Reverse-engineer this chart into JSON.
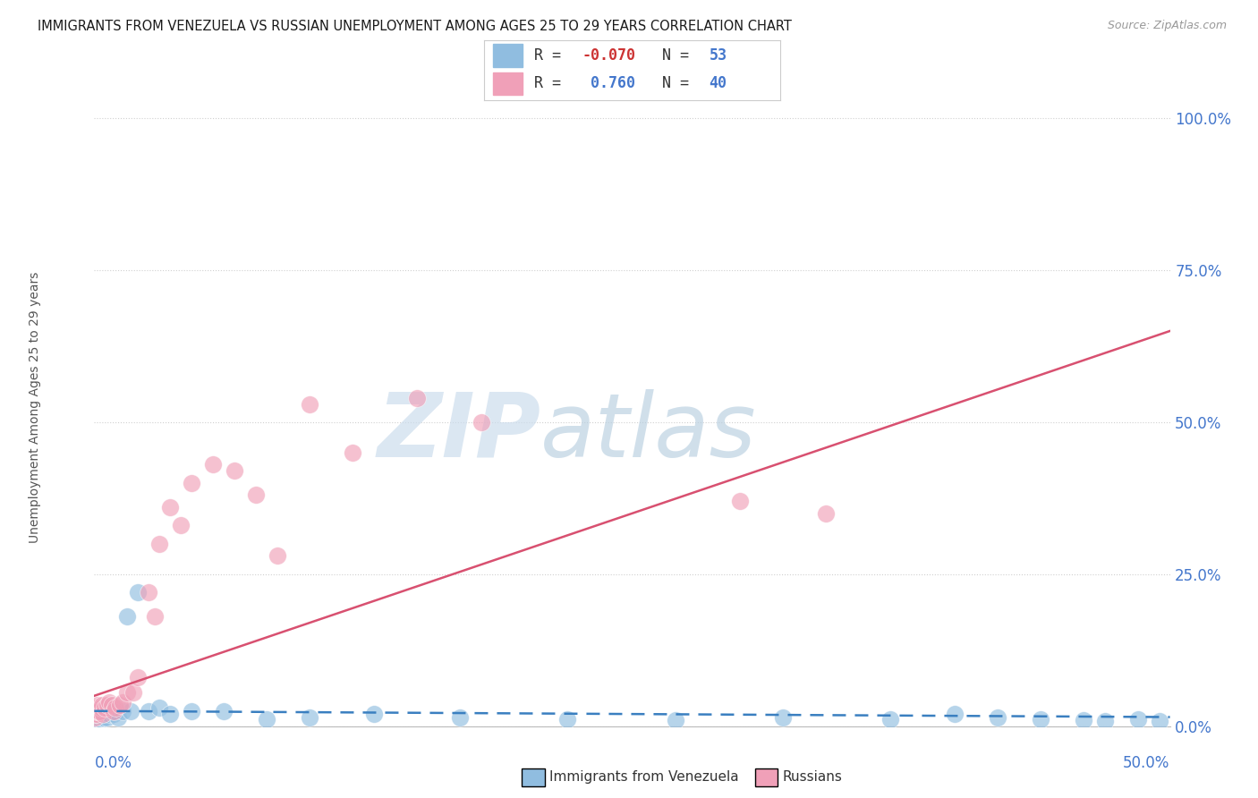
{
  "title": "IMMIGRANTS FROM VENEZUELA VS RUSSIAN UNEMPLOYMENT AMONG AGES 25 TO 29 YEARS CORRELATION CHART",
  "source": "Source: ZipAtlas.com",
  "ylabel_label": "Unemployment Among Ages 25 to 29 years",
  "blue_color": "#90bde0",
  "pink_color": "#f0a0b8",
  "blue_line_color": "#3a7fc0",
  "pink_line_color": "#d85070",
  "grid_color": "#d0d0d0",
  "background_color": "#ffffff",
  "title_color": "#1a1a1a",
  "axis_label_color": "#4477cc",
  "watermark": "ZIPatlas",
  "watermark_zip_color": "#c5d8ee",
  "watermark_atlas_color": "#b8cce0",
  "blue_scatter_x": [
    0.0002,
    0.0003,
    0.0004,
    0.0005,
    0.0006,
    0.0007,
    0.0008,
    0.0009,
    0.001,
    0.0012,
    0.0013,
    0.0014,
    0.0015,
    0.0017,
    0.002,
    0.0022,
    0.0025,
    0.003,
    0.0032,
    0.0035,
    0.004,
    0.0045,
    0.005,
    0.006,
    0.007,
    0.008,
    0.009,
    0.01,
    0.011,
    0.013,
    0.015,
    0.017,
    0.02,
    0.025,
    0.03,
    0.035,
    0.045,
    0.06,
    0.08,
    0.1,
    0.13,
    0.17,
    0.22,
    0.27,
    0.32,
    0.37,
    0.4,
    0.42,
    0.44,
    0.46,
    0.47,
    0.485,
    0.495
  ],
  "blue_scatter_y": [
    0.01,
    0.015,
    0.008,
    0.012,
    0.01,
    0.015,
    0.008,
    0.012,
    0.01,
    0.012,
    0.015,
    0.01,
    0.015,
    0.012,
    0.02,
    0.015,
    0.018,
    0.012,
    0.02,
    0.015,
    0.018,
    0.015,
    0.02,
    0.015,
    0.02,
    0.025,
    0.02,
    0.025,
    0.015,
    0.025,
    0.18,
    0.025,
    0.22,
    0.025,
    0.03,
    0.02,
    0.025,
    0.025,
    0.012,
    0.015,
    0.02,
    0.015,
    0.012,
    0.01,
    0.015,
    0.012,
    0.02,
    0.015,
    0.012,
    0.01,
    0.008,
    0.012,
    0.008
  ],
  "pink_scatter_x": [
    0.0002,
    0.0004,
    0.0006,
    0.0008,
    0.001,
    0.0012,
    0.0014,
    0.0016,
    0.002,
    0.0025,
    0.003,
    0.0035,
    0.004,
    0.005,
    0.006,
    0.007,
    0.008,
    0.009,
    0.01,
    0.012,
    0.013,
    0.015,
    0.018,
    0.02,
    0.025,
    0.028,
    0.03,
    0.035,
    0.04,
    0.045,
    0.055,
    0.065,
    0.075,
    0.085,
    0.1,
    0.12,
    0.15,
    0.18,
    0.3,
    0.34
  ],
  "pink_scatter_y": [
    0.015,
    0.02,
    0.025,
    0.03,
    0.02,
    0.025,
    0.03,
    0.035,
    0.025,
    0.025,
    0.03,
    0.035,
    0.02,
    0.03,
    0.035,
    0.04,
    0.035,
    0.025,
    0.03,
    0.035,
    0.04,
    0.055,
    0.055,
    0.08,
    0.22,
    0.18,
    0.3,
    0.36,
    0.33,
    0.4,
    0.43,
    0.42,
    0.38,
    0.28,
    0.53,
    0.45,
    0.54,
    0.5,
    0.37,
    0.35
  ],
  "pink_trendline_x0": 0.0,
  "pink_trendline_y0": 0.05,
  "pink_trendline_x1": 0.5,
  "pink_trendline_y1": 0.65,
  "blue_trendline_x0": 0.0,
  "blue_trendline_y0": 0.025,
  "blue_trendline_x1": 0.5,
  "blue_trendline_y1": 0.015,
  "xlim": [
    0.0,
    0.5
  ],
  "ylim": [
    0.0,
    1.05
  ],
  "yticks": [
    0.0,
    0.25,
    0.5,
    0.75,
    1.0
  ],
  "ytick_labels": [
    "0.0%",
    "25.0%",
    "50.0%",
    "75.0%",
    "100.0%"
  ],
  "legend_blue_r": "R = -0.070",
  "legend_blue_n": "N = 53",
  "legend_pink_r": "R =  0.760",
  "legend_pink_n": "N = 40",
  "bottom_legend_blue": "Immigrants from Venezuela",
  "bottom_legend_pink": "Russians"
}
